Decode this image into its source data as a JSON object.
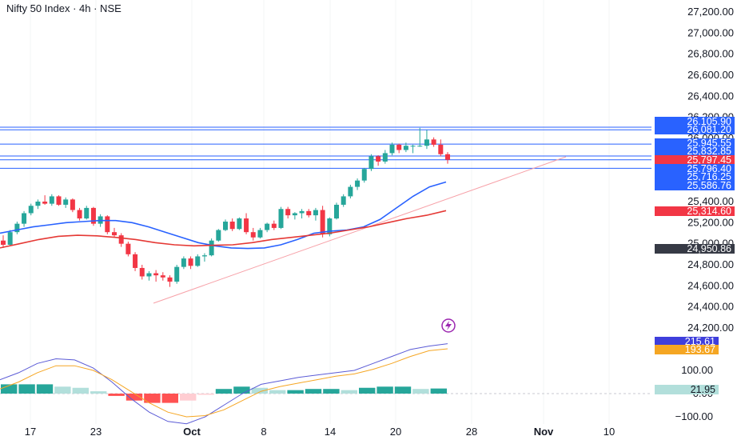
{
  "header": {
    "title": "Nifty 50 Index · 4h · NSE"
  },
  "price_axis": {
    "labels": [
      "27,200.00",
      "27,000.00",
      "26,800.00",
      "26,600.00",
      "26,400.00",
      "26,200.00",
      "26,000.00",
      "25,400.00",
      "25,200.00",
      "25,000.00",
      "24,800.00",
      "24,600.00",
      "24,400.00",
      "24,200.00"
    ]
  },
  "macd_axis": {
    "labels": [
      "100.00",
      "0.00",
      "−100.00"
    ]
  },
  "time_axis": {
    "labels": [
      "17",
      "23",
      "Oct",
      "8",
      "14",
      "20",
      "28",
      "Nov",
      "10"
    ]
  },
  "price_badges": [
    {
      "text": "26,105.90",
      "color": "#2962ff"
    },
    {
      "text": "26,081.20",
      "color": "#2962ff"
    },
    {
      "text": "25,945.55",
      "color": "#2962ff"
    },
    {
      "text": "25,832.85",
      "color": "#2962ff"
    },
    {
      "text": "25,797.45",
      "color": "#f23645"
    },
    {
      "text": "25,796.40",
      "color": "#2962ff"
    },
    {
      "text": "25,716.25",
      "color": "#2962ff"
    },
    {
      "text": "25,586.76",
      "color": "#2962ff"
    },
    {
      "text": "25,314.60",
      "color": "#f23645"
    },
    {
      "text": "24,950.86",
      "color": "#363a45"
    }
  ],
  "macd_badges": [
    {
      "text": "215.61",
      "color": "#3f3fdc"
    },
    {
      "text": "193.67",
      "color": "#f5a623"
    },
    {
      "text": "21.95",
      "color": "#b2dfdb"
    }
  ],
  "horizontal_levels": [
    26105.9,
    26081.2,
    25945.55,
    25832.85,
    25796.4,
    25716.25
  ],
  "colors": {
    "up": "#26a69a",
    "down": "#f23645",
    "ema_fast": "#2962ff",
    "ema_slow": "#e53935",
    "trendline": "#f7a1a8",
    "macd_line": "#5b5bd6",
    "signal_line": "#f5a623",
    "hist_up_strong": "#26a69a",
    "hist_up_weak": "#b2dfdb",
    "hist_down_strong": "#ff5252",
    "hist_down_weak": "#ffcdd2"
  },
  "icons": {
    "flash": "lightning-icon"
  },
  "chart_data": {
    "type": "candlestick",
    "title": "Nifty 50 Index · 4h · NSE",
    "ylim": [
      24100,
      27300
    ],
    "candles": [
      [
        25030,
        25080,
        24960,
        24990
      ],
      [
        24990,
        25130,
        24980,
        25110
      ],
      [
        25110,
        25210,
        25090,
        25190
      ],
      [
        25190,
        25310,
        25160,
        25290
      ],
      [
        25290,
        25380,
        25270,
        25360
      ],
      [
        25360,
        25420,
        25330,
        25400
      ],
      [
        25400,
        25460,
        25370,
        25380
      ],
      [
        25380,
        25470,
        25360,
        25450
      ],
      [
        25450,
        25460,
        25360,
        25370
      ],
      [
        25370,
        25440,
        25340,
        25420
      ],
      [
        25420,
        25430,
        25300,
        25320
      ],
      [
        25320,
        25340,
        25220,
        25240
      ],
      [
        25240,
        25360,
        25230,
        25340
      ],
      [
        25340,
        25350,
        25170,
        25190
      ],
      [
        25190,
        25280,
        25160,
        25260
      ],
      [
        25260,
        25270,
        25090,
        25110
      ],
      [
        25110,
        25150,
        25060,
        25080
      ],
      [
        25080,
        25100,
        24970,
        25000
      ],
      [
        25000,
        25020,
        24880,
        24900
      ],
      [
        24900,
        24920,
        24740,
        24770
      ],
      [
        24770,
        24800,
        24660,
        24690
      ],
      [
        24690,
        24740,
        24650,
        24720
      ],
      [
        24720,
        24750,
        24640,
        24700
      ],
      [
        24700,
        24730,
        24650,
        24680
      ],
      [
        24680,
        24700,
        24590,
        24640
      ],
      [
        24640,
        24800,
        24620,
        24780
      ],
      [
        24780,
        24880,
        24760,
        24860
      ],
      [
        24860,
        24880,
        24760,
        24790
      ],
      [
        24790,
        24900,
        24780,
        24880
      ],
      [
        24880,
        24910,
        24830,
        24890
      ],
      [
        24890,
        25050,
        24880,
        25030
      ],
      [
        25030,
        25140,
        25020,
        25130
      ],
      [
        25130,
        25230,
        25120,
        25210
      ],
      [
        25210,
        25240,
        25120,
        25140
      ],
      [
        25140,
        25250,
        25130,
        25240
      ],
      [
        25240,
        25290,
        25090,
        25110
      ],
      [
        25110,
        25150,
        25030,
        25060
      ],
      [
        25060,
        25150,
        25050,
        25130
      ],
      [
        25130,
        25200,
        25110,
        25190
      ],
      [
        25190,
        25220,
        25130,
        25150
      ],
      [
        25150,
        25350,
        25140,
        25330
      ],
      [
        25330,
        25350,
        25240,
        25270
      ],
      [
        25270,
        25300,
        25230,
        25290
      ],
      [
        25290,
        25330,
        25240,
        25310
      ],
      [
        25310,
        25330,
        25250,
        25270
      ],
      [
        25270,
        25340,
        25220,
        25320
      ],
      [
        25320,
        25360,
        25060,
        25090
      ],
      [
        25090,
        25250,
        25070,
        25240
      ],
      [
        25240,
        25390,
        25230,
        25370
      ],
      [
        25370,
        25470,
        25350,
        25450
      ],
      [
        25450,
        25560,
        25430,
        25540
      ],
      [
        25540,
        25620,
        25510,
        25600
      ],
      [
        25600,
        25720,
        25580,
        25710
      ],
      [
        25710,
        25850,
        25690,
        25830
      ],
      [
        25830,
        25840,
        25740,
        25780
      ],
      [
        25780,
        25890,
        25760,
        25860
      ],
      [
        25860,
        25960,
        25840,
        25940
      ],
      [
        25940,
        25950,
        25860,
        25890
      ],
      [
        25890,
        25960,
        25870,
        25930
      ],
      [
        25930,
        25940,
        25860,
        25930
      ],
      [
        25930,
        26100,
        25920,
        25930
      ],
      [
        25930,
        26080,
        25900,
        25990
      ],
      [
        25990,
        26010,
        25920,
        25940
      ],
      [
        25940,
        25990,
        25830,
        25850
      ],
      [
        25850,
        25870,
        25760,
        25797
      ]
    ],
    "ema_fast": [
      25100,
      25130,
      25160,
      25180,
      25200,
      25210,
      25220,
      25220,
      25200,
      25160,
      25110,
      25060,
      25010,
      24980,
      24960,
      24955,
      24960,
      24990,
      25040,
      25100,
      25120,
      25130,
      25160,
      25230,
      25340,
      25450,
      25540,
      25586
    ],
    "ema_slow": [
      24960,
      25000,
      25040,
      25070,
      25080,
      25075,
      25060,
      25040,
      25010,
      24990,
      24980,
      24985,
      24990,
      25010,
      25040,
      25060,
      25080,
      25100,
      25130,
      25160,
      25200,
      25240,
      25270,
      25314
    ],
    "macd": [
      60,
      90,
      130,
      150,
      145,
      110,
      50,
      -20,
      -80,
      -120,
      -130,
      -100,
      -50,
      0,
      40,
      55,
      70,
      80,
      90,
      100,
      130,
      160,
      190,
      205,
      215
    ],
    "signal": [
      20,
      50,
      90,
      120,
      120,
      100,
      60,
      10,
      -40,
      -80,
      -100,
      -95,
      -70,
      -30,
      10,
      30,
      45,
      60,
      75,
      85,
      105,
      130,
      160,
      185,
      193
    ],
    "histogram": [
      40,
      40,
      40,
      30,
      25,
      10,
      -10,
      -30,
      -40,
      -40,
      -30,
      -5,
      20,
      30,
      25,
      15,
      15,
      20,
      20,
      15,
      25,
      30,
      30,
      20,
      21.95
    ]
  }
}
